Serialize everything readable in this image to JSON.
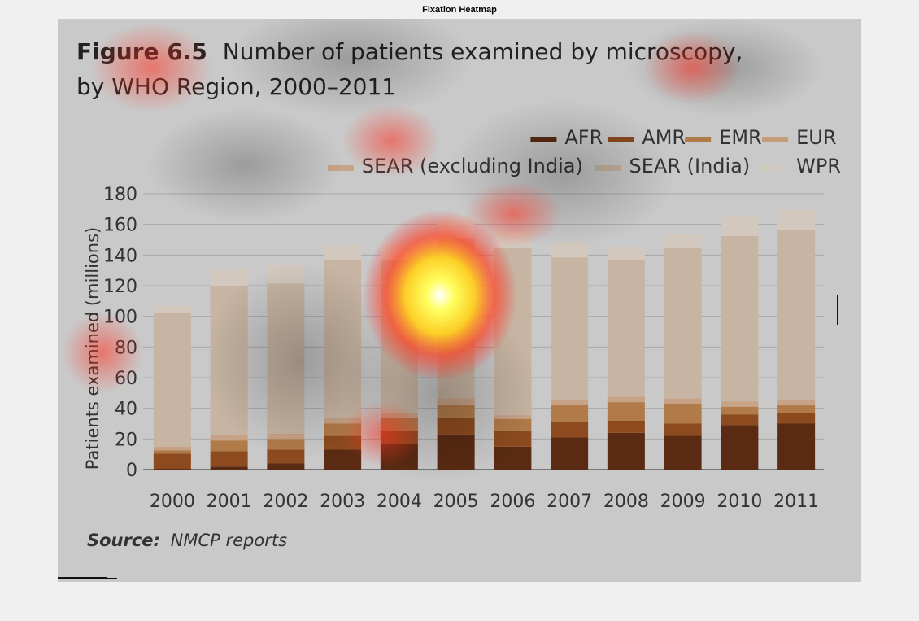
{
  "window": {
    "title": "Fixation Heatmap"
  },
  "colors": {
    "background": "#c9c9c9",
    "page": "#f0f0f0",
    "series": [
      "#5a2a12",
      "#8c4a1e",
      "#b07a49",
      "#c49c78",
      "#c7a287",
      "#c7b4a2",
      "#d2c8be"
    ]
  },
  "chart_data": {
    "type": "bar",
    "stacked": true,
    "title_bold": "Figure 6.5",
    "title_line1": "Number of patients examined by microscopy,",
    "title_line2": "by WHO Region, 2000–2011",
    "xlabel": "",
    "ylabel": "Patients examined (millions)",
    "ylim": [
      0,
      180
    ],
    "yticks": [
      0,
      20,
      40,
      60,
      80,
      100,
      120,
      140,
      160,
      180
    ],
    "grid": true,
    "legend_position": "top-right",
    "categories": [
      "2000",
      "2001",
      "2002",
      "2003",
      "2004",
      "2005",
      "2006",
      "2007",
      "2008",
      "2009",
      "2010",
      "2011"
    ],
    "series": [
      {
        "name": "AFR",
        "values": [
          0.5,
          2,
          4,
          13,
          16.5,
          23,
          15,
          21,
          24,
          22,
          29,
          30
        ]
      },
      {
        "name": "AMR",
        "values": [
          10,
          10,
          9,
          9,
          9,
          11,
          10,
          10,
          8,
          8,
          7,
          7
        ]
      },
      {
        "name": "EMR",
        "values": [
          2,
          7,
          7,
          8,
          8,
          8,
          8,
          11,
          12,
          13,
          5,
          5
        ]
      },
      {
        "name": "EUR",
        "values": [
          0.5,
          0.5,
          0.5,
          0.5,
          0.5,
          0.5,
          0.5,
          0.5,
          0.5,
          0.5,
          0.5,
          0.5
        ]
      },
      {
        "name": "SEAR (excluding India)",
        "values": [
          2,
          3,
          3,
          3,
          3,
          4,
          2,
          3,
          3,
          3,
          3,
          3
        ]
      },
      {
        "name": "SEAR (India)",
        "values": [
          87,
          97,
          98,
          103,
          100,
          104,
          109,
          93,
          89,
          98,
          108,
          111
        ]
      },
      {
        "name": "WPR",
        "values": [
          5,
          11,
          12,
          10,
          10,
          14,
          12,
          10,
          9,
          9,
          13,
          13
        ]
      }
    ],
    "source_label": "Source:",
    "source_text": "NMCP reports"
  }
}
